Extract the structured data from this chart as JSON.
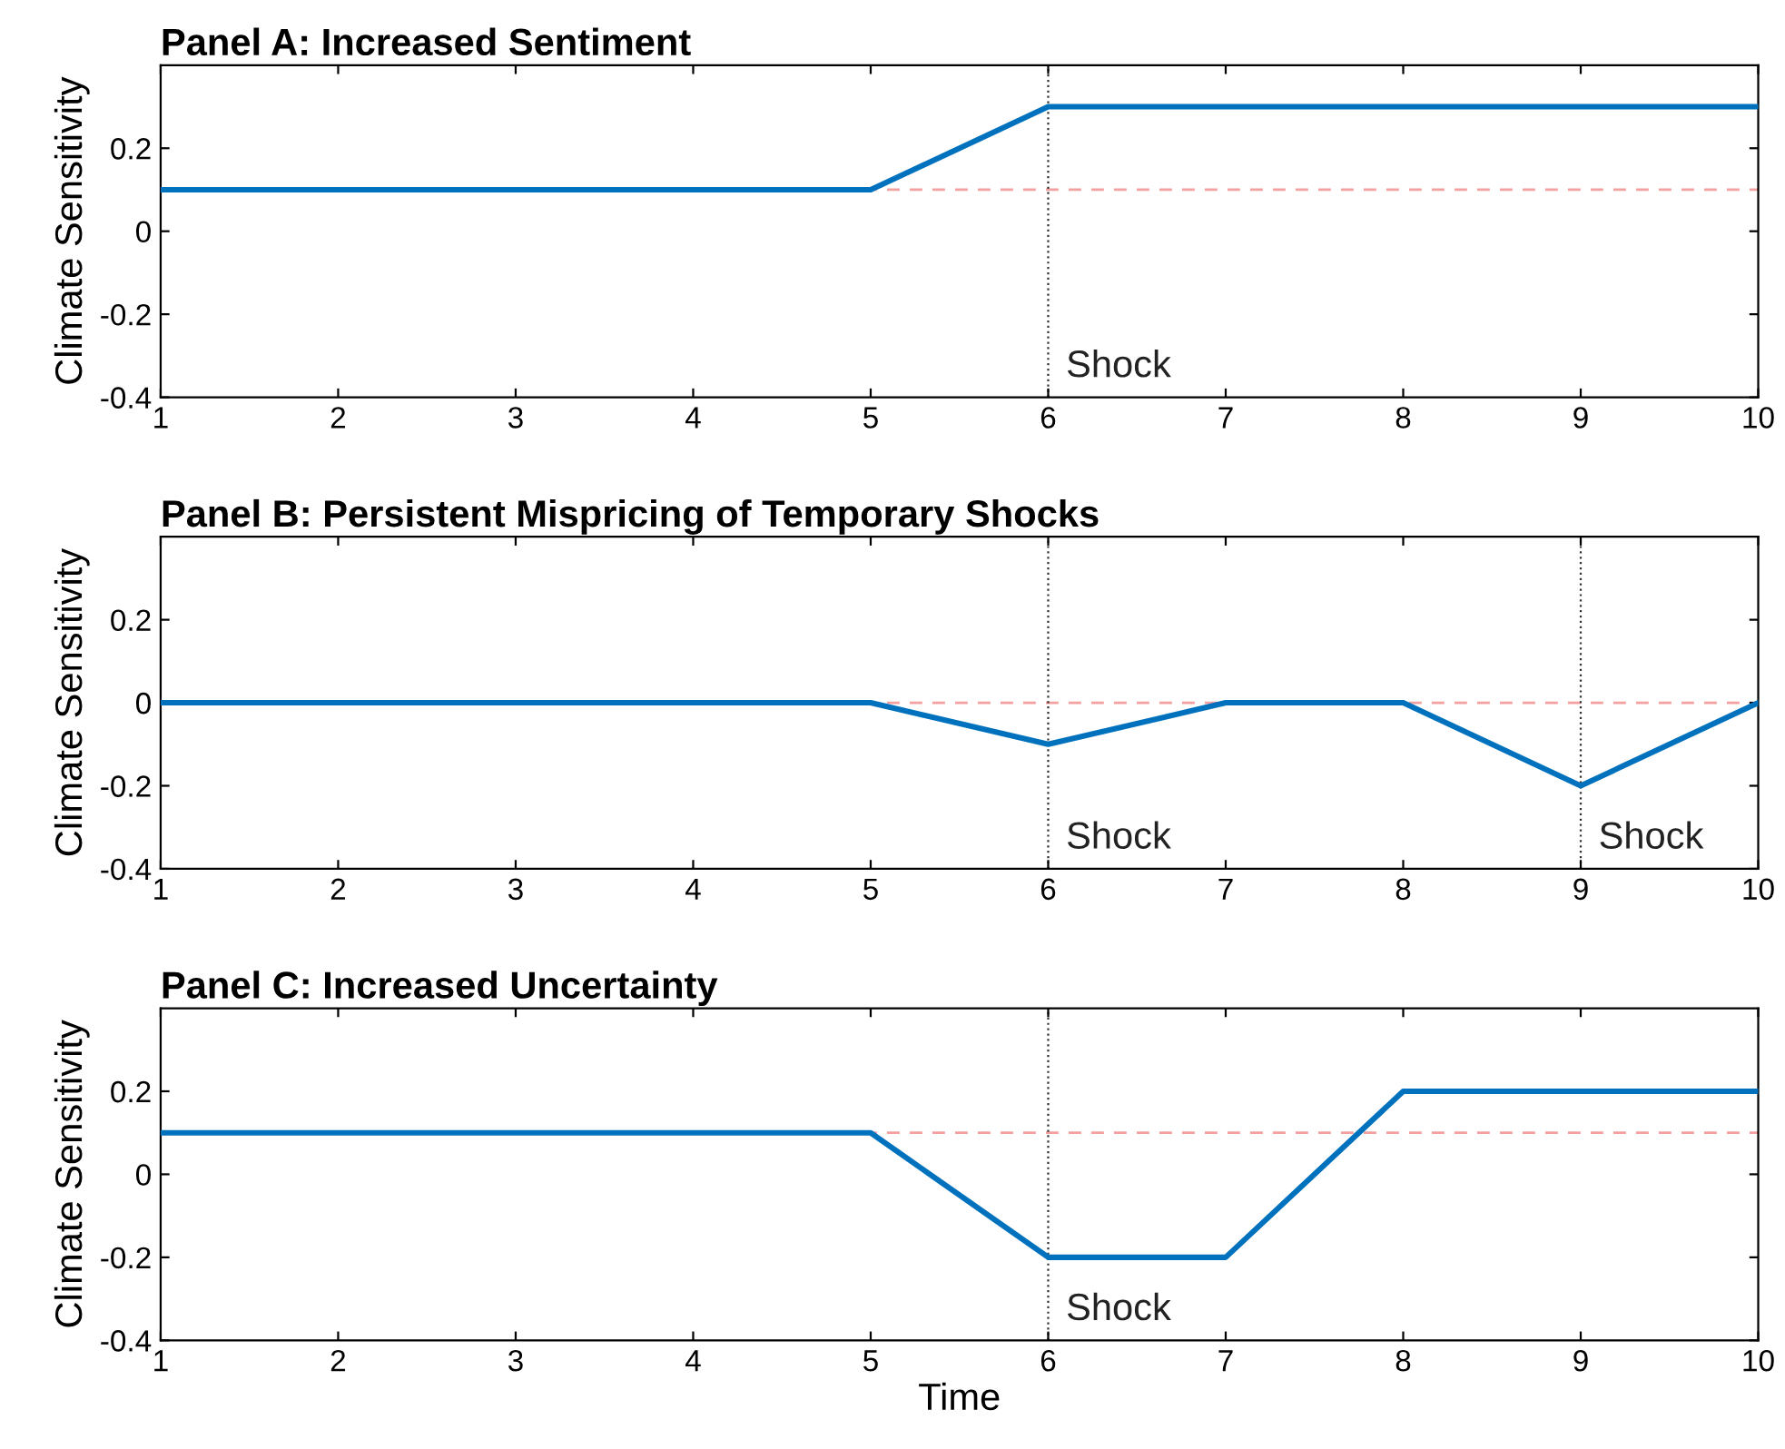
{
  "chart_data": [
    {
      "type": "line",
      "title": "Panel A: Increased Sentiment",
      "ylabel": "Climate Sensitivity",
      "x": [
        1,
        2,
        3,
        4,
        5,
        6,
        7,
        8,
        9,
        10
      ],
      "xlim": [
        1,
        10
      ],
      "ylim": [
        -0.4,
        0.4
      ],
      "xticks": [
        1,
        2,
        3,
        4,
        5,
        6,
        7,
        8,
        9,
        10
      ],
      "yticks": [
        -0.4,
        -0.2,
        0,
        0.2
      ],
      "grid": false,
      "line_style": "solid",
      "marker": "none",
      "series": [
        {
          "color": "#0072bd",
          "values": [
            0.1,
            0.1,
            0.1,
            0.1,
            0.1,
            0.3,
            0.3,
            0.3,
            0.3,
            0.3
          ]
        }
      ],
      "ref_lines": [
        {
          "axis": "y",
          "value": 0.1,
          "color": "#f4a0a0",
          "line_style": "dashed"
        },
        {
          "axis": "x",
          "value": 6,
          "label": "Shock",
          "color": "#333333",
          "line_style": "dotted"
        }
      ]
    },
    {
      "type": "line",
      "title": "Panel B: Persistent Mispricing of Temporary Shocks",
      "ylabel": "Climate Sensitivity",
      "x": [
        1,
        2,
        3,
        4,
        5,
        6,
        7,
        8,
        9,
        10
      ],
      "xlim": [
        1,
        10
      ],
      "ylim": [
        -0.4,
        0.4
      ],
      "xticks": [
        1,
        2,
        3,
        4,
        5,
        6,
        7,
        8,
        9,
        10
      ],
      "yticks": [
        -0.4,
        -0.2,
        0,
        0.2
      ],
      "grid": false,
      "line_style": "solid",
      "marker": "none",
      "series": [
        {
          "color": "#0072bd",
          "values": [
            0,
            0,
            0,
            0,
            0,
            -0.1,
            0,
            0,
            -0.2,
            0
          ]
        }
      ],
      "ref_lines": [
        {
          "axis": "y",
          "value": 0,
          "color": "#f4a0a0",
          "line_style": "dashed"
        },
        {
          "axis": "x",
          "value": 6,
          "label": "Shock",
          "color": "#333333",
          "line_style": "dotted"
        },
        {
          "axis": "x",
          "value": 9,
          "label": "Shock",
          "color": "#333333",
          "line_style": "dotted"
        }
      ]
    },
    {
      "type": "line",
      "title": "Panel C: Increased Uncertainty",
      "ylabel": "Climate Sensitivity",
      "xlabel": "Time",
      "x": [
        1,
        2,
        3,
        4,
        5,
        6,
        7,
        8,
        9,
        10
      ],
      "xlim": [
        1,
        10
      ],
      "ylim": [
        -0.4,
        0.4
      ],
      "xticks": [
        1,
        2,
        3,
        4,
        5,
        6,
        7,
        8,
        9,
        10
      ],
      "yticks": [
        -0.4,
        -0.2,
        0,
        0.2
      ],
      "grid": false,
      "line_style": "solid",
      "marker": "none",
      "series": [
        {
          "color": "#0072bd",
          "values": [
            0.1,
            0.1,
            0.1,
            0.1,
            0.1,
            -0.2,
            -0.2,
            0.2,
            0.2,
            0.2
          ]
        }
      ],
      "ref_lines": [
        {
          "axis": "y",
          "value": 0.1,
          "color": "#f4a0a0",
          "line_style": "dashed"
        },
        {
          "axis": "x",
          "value": 6,
          "label": "Shock",
          "color": "#333333",
          "line_style": "dotted"
        }
      ]
    }
  ]
}
